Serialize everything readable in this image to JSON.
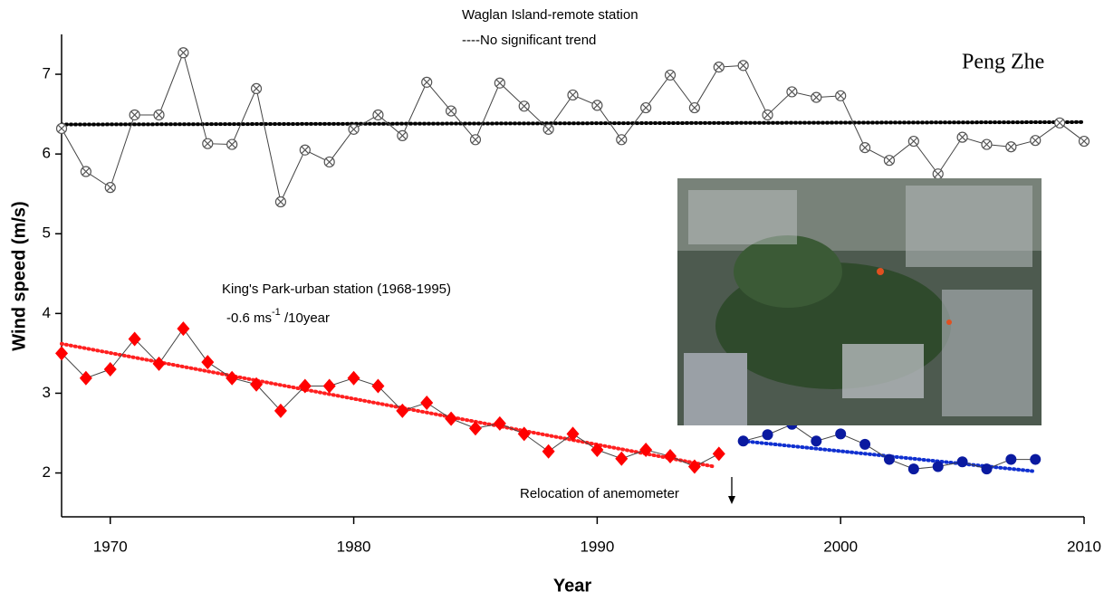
{
  "author": "Peng Zhe",
  "chart_data": {
    "type": "line",
    "xlabel": "Year",
    "ylabel": "Wind speed (m/s)",
    "xlim": [
      1968,
      2010
    ],
    "xticks": [
      1970,
      1980,
      1990,
      2000,
      2010
    ],
    "ylim": [
      1.45,
      7.5
    ],
    "yticks": [
      2,
      3,
      4,
      5,
      6,
      7
    ],
    "annotations": {
      "waglan_title": "Waglan Island-remote station",
      "waglan_trend": "----No significant trend",
      "kings_title": "King's Park-urban station (1968-1995)",
      "kings_trend_a": "-0.6 ms",
      "kings_trend_sup": "-1",
      "kings_trend_b": " /10year",
      "relocation": "Relocation of anemometer"
    },
    "series": [
      {
        "color": "#555555",
        "marker": "circle-x",
        "x": [
          1968,
          1969,
          1970,
          1971,
          1972,
          1973,
          1974,
          1975,
          1976,
          1977,
          1978,
          1979,
          1980,
          1981,
          1982,
          1983,
          1984,
          1985,
          1986,
          1987,
          1988,
          1989,
          1990,
          1991,
          1992,
          1993,
          1994,
          1995,
          1996,
          1997,
          1998,
          1999,
          2000,
          2001,
          2002,
          2003,
          2004,
          2005,
          2006,
          2007,
          2008,
          2009,
          2010
        ],
        "values": [
          6.32,
          5.78,
          5.58,
          6.49,
          6.49,
          7.27,
          6.13,
          6.12,
          6.82,
          5.4,
          6.05,
          5.9,
          6.31,
          6.49,
          6.23,
          6.9,
          6.54,
          6.18,
          6.89,
          6.6,
          6.31,
          6.74,
          6.61,
          6.18,
          6.58,
          6.99,
          6.58,
          7.09,
          7.11,
          6.49,
          6.78,
          6.71,
          6.73,
          6.08,
          5.92,
          6.16,
          5.75,
          6.21,
          6.12,
          6.09,
          6.17,
          6.39,
          6.16
        ]
      },
      {
        "color": "#ff0000",
        "marker": "diamond",
        "x": [
          1968,
          1969,
          1970,
          1971,
          1972,
          1973,
          1974,
          1975,
          1976,
          1977,
          1978,
          1979,
          1980,
          1981,
          1982,
          1983,
          1984,
          1985,
          1986,
          1987,
          1988,
          1989,
          1990,
          1991,
          1992,
          1993,
          1994,
          1995
        ],
        "values": [
          3.5,
          3.19,
          3.3,
          3.68,
          3.37,
          3.81,
          3.39,
          3.19,
          3.11,
          2.78,
          3.09,
          3.09,
          3.19,
          3.09,
          2.78,
          2.88,
          2.68,
          2.56,
          2.62,
          2.49,
          2.27,
          2.49,
          2.29,
          2.18,
          2.29,
          2.21,
          2.08,
          2.24
        ]
      },
      {
        "color": "#0a1aa0",
        "marker": "circle",
        "x": [
          1996,
          1997,
          1998,
          1999,
          2000,
          2001,
          2002,
          2003,
          2004,
          2005,
          2006,
          2007,
          2008
        ],
        "values": [
          2.4,
          2.48,
          2.61,
          2.4,
          2.49,
          2.36,
          2.17,
          2.05,
          2.08,
          2.14,
          2.05,
          2.17,
          2.17
        ]
      }
    ],
    "trend_lines": [
      {
        "color": "#000000",
        "x": [
          1968,
          2010
        ],
        "values": [
          6.37,
          6.4
        ]
      },
      {
        "color": "#ff2020",
        "x": [
          1968,
          1994.8
        ],
        "values": [
          3.62,
          2.08
        ]
      },
      {
        "color": "#1030d0",
        "x": [
          1996,
          2008
        ],
        "values": [
          2.4,
          2.02
        ]
      }
    ]
  }
}
